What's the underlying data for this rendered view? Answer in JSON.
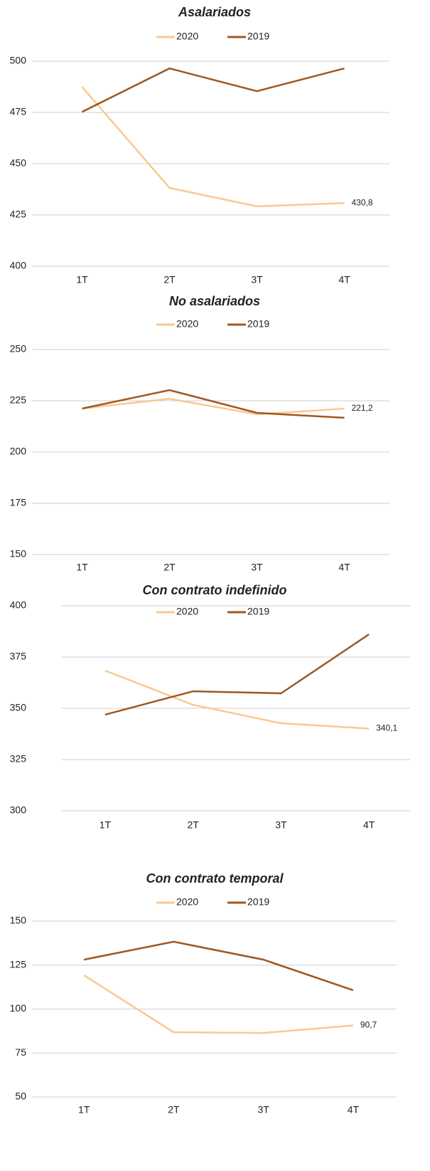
{
  "chart_data": [
    {
      "type": "line",
      "title": "Asalariados",
      "categories": [
        "1T",
        "2T",
        "3T",
        "4T"
      ],
      "series": [
        {
          "name": "2020",
          "color": "#f9c98f",
          "values": [
            487.5,
            438.2,
            429.2,
            430.8
          ],
          "value_labels": [
            null,
            null,
            null,
            "430,8"
          ]
        },
        {
          "name": "2019",
          "color": "#a0571f",
          "values": [
            475.3,
            496.5,
            485.4,
            496.5
          ]
        }
      ],
      "ylim": [
        400,
        500
      ],
      "yticks": [
        400,
        425,
        450,
        475,
        500
      ],
      "grid": true
    },
    {
      "type": "line",
      "title": "No asalariados",
      "categories": [
        "1T",
        "2T",
        "3T",
        "4T"
      ],
      "series": [
        {
          "name": "2020",
          "color": "#f9c98f",
          "values": [
            221.2,
            226,
            218.4,
            221.2
          ],
          "value_labels": [
            null,
            null,
            null,
            "221,2"
          ]
        },
        {
          "name": "2019",
          "color": "#a0571f",
          "values": [
            221.2,
            230.2,
            219.1,
            216.7
          ]
        }
      ],
      "ylim": [
        150,
        250
      ],
      "yticks": [
        150,
        175,
        200,
        225,
        250
      ],
      "grid": true
    },
    {
      "type": "line",
      "title": "Con contrato indefinido",
      "categories": [
        "1T",
        "2T",
        "3T",
        "4T"
      ],
      "series": [
        {
          "name": "2020",
          "color": "#f9c98f",
          "values": [
            368.4,
            351.7,
            342.7,
            340.1
          ],
          "value_labels": [
            null,
            null,
            null,
            "340,1"
          ]
        },
        {
          "name": "2019",
          "color": "#a0571f",
          "values": [
            346.9,
            358.3,
            357.3,
            386.1
          ]
        }
      ],
      "ylim": [
        300,
        400
      ],
      "yticks": [
        300,
        325,
        350,
        375,
        400
      ],
      "grid": true
    },
    {
      "type": "line",
      "title": "Con contrato temporal",
      "categories": [
        "1T",
        "2T",
        "3T",
        "4T"
      ],
      "series": [
        {
          "name": "2020",
          "color": "#f9c98f",
          "values": [
            119.2,
            86.8,
            86.4,
            90.7
          ],
          "value_labels": [
            null,
            null,
            null,
            "90,7"
          ]
        },
        {
          "name": "2019",
          "color": "#a0571f",
          "values": [
            128.1,
            138.3,
            128.1,
            110.7
          ]
        }
      ],
      "ylim": [
        50,
        150
      ],
      "yticks": [
        50,
        75,
        100,
        125,
        150
      ],
      "grid": true
    }
  ]
}
